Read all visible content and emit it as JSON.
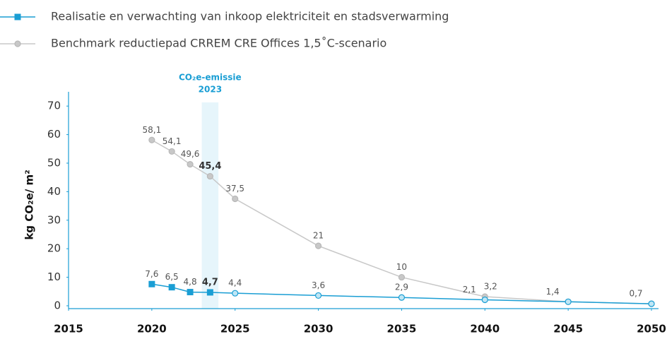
{
  "chart_data": {
    "type": "line",
    "y_label": "kg CO₂e/ m²",
    "annotation": {
      "text": "CO₂e-emissie",
      "year": "2023",
      "x": [
        2023,
        2024
      ]
    },
    "x": [
      2020,
      2021.2,
      2022.3,
      2023.5,
      2025,
      2030,
      2035,
      2040,
      2045,
      2050
    ],
    "series": [
      {
        "name": "Realisatie en verwachting van inkoop elektriciteit en stadsverwarming",
        "color": "#1a9ed4",
        "values": [
          7.6,
          6.5,
          4.8,
          4.7,
          4.4,
          3.6,
          2.9,
          2.1,
          1.4,
          0.7
        ],
        "value_labels": [
          "7,6",
          "6,5",
          "4,8",
          "4,7",
          "4,4",
          "3,6",
          "2,9",
          "2,1",
          "1,4",
          "0,7"
        ]
      },
      {
        "name": "Benchmark reductiepad CRREM CRE Offices 1,5˚C-scenario",
        "color": "#c8c8c8",
        "values": [
          58.1,
          54.1,
          49.6,
          45.4,
          37.5,
          21,
          10,
          3.2,
          1.4,
          0.7
        ],
        "value_labels": [
          "58,1",
          "54,1",
          "49,6",
          "45,4",
          "37,5",
          "21",
          "10",
          "3,2",
          null,
          null
        ]
      }
    ],
    "xlim": [
      2015,
      2050
    ],
    "xticks": [
      2015,
      2020,
      2025,
      2030,
      2035,
      2040,
      2045,
      2050
    ],
    "ylim": [
      -1,
      75
    ],
    "yticks": [
      0,
      10,
      20,
      30,
      40,
      50,
      60,
      70
    ]
  }
}
